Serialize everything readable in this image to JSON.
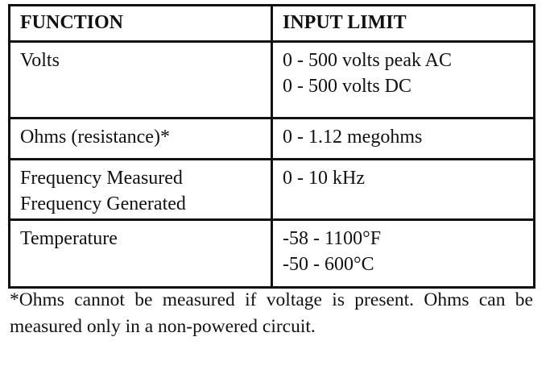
{
  "table": {
    "headers": [
      "FUNCTION",
      "INPUT LIMIT"
    ],
    "rows": [
      [
        [
          "Volts"
        ],
        [
          "0 - 500 volts peak AC",
          "0 - 500 volts DC"
        ]
      ],
      [
        [
          "Ohms (resistance)*"
        ],
        [
          "0 - 1.12 megohms"
        ]
      ],
      [
        [
          "Frequency Measured",
          "Frequency Generated"
        ],
        [
          "0 - 10 kHz"
        ]
      ],
      [
        [
          "Temperature"
        ],
        [
          "-58 - 1100°F",
          "-50 - 600°C"
        ]
      ]
    ]
  },
  "footnote": "*Ohms cannot be measured if voltage is present. Ohms can be measured only in a non-powered circuit."
}
